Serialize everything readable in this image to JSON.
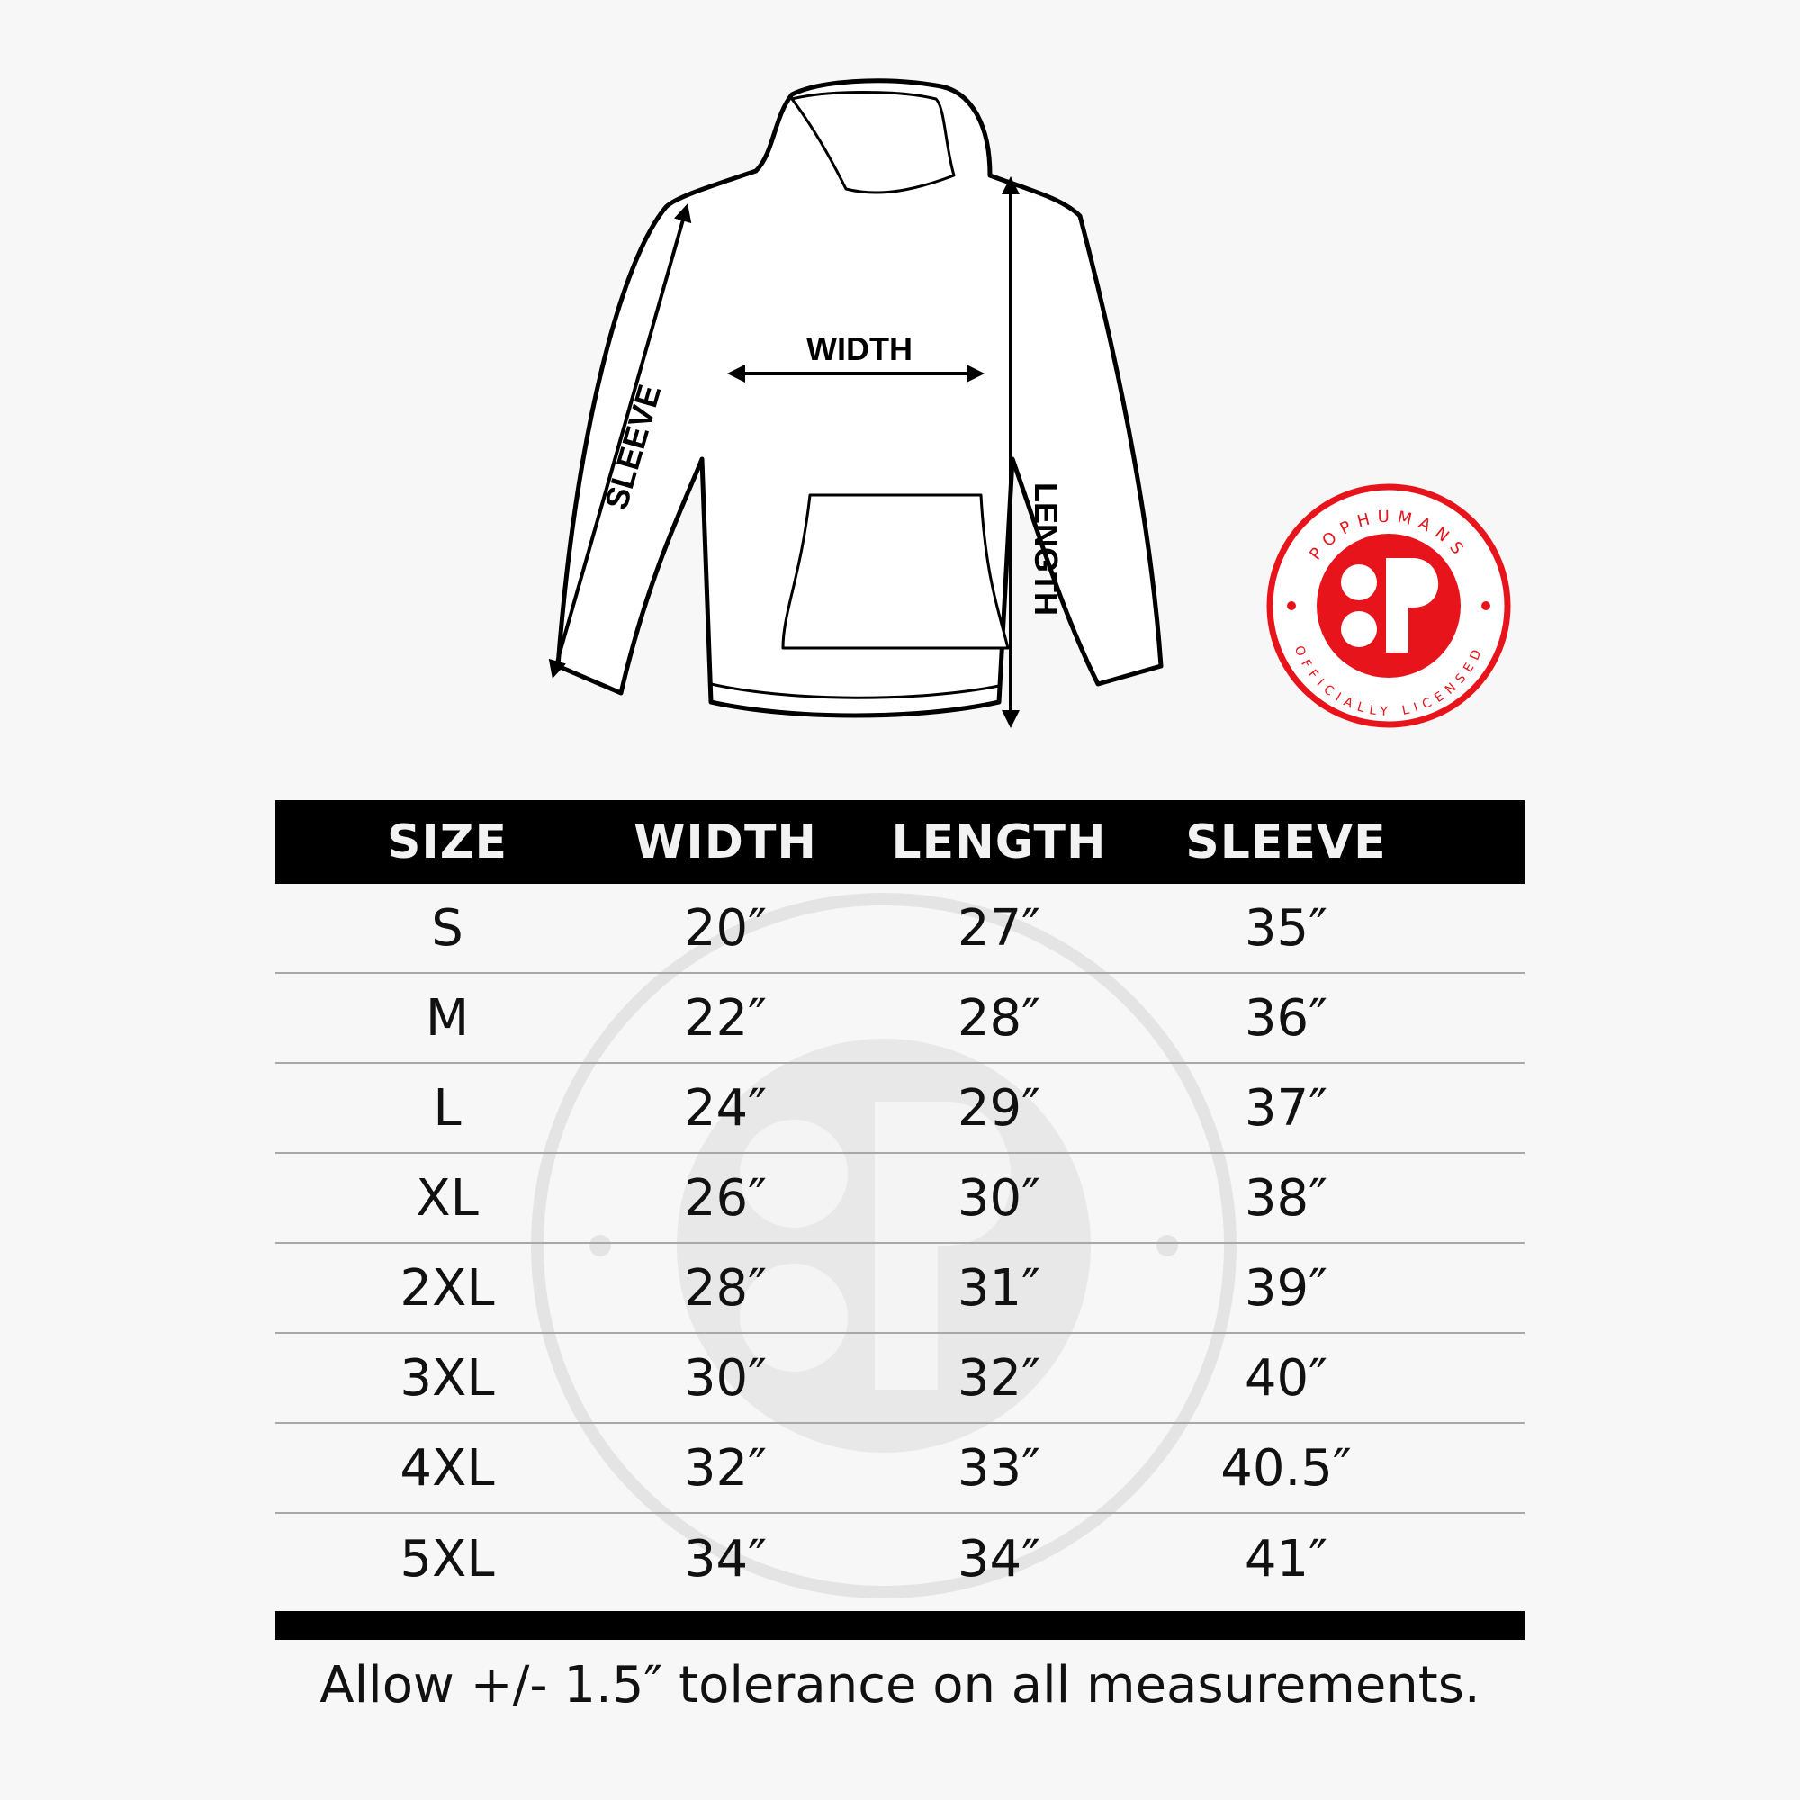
{
  "diagram": {
    "width_label": "WIDTH",
    "length_label": "LENGTH",
    "sleeve_label": "SLEEVE"
  },
  "logo": {
    "top_text": "POPHUMANS",
    "bottom_text": "OFFICIALLY LICENSED",
    "color": "#e8141b"
  },
  "table": {
    "headers": [
      "SIZE",
      "WIDTH",
      "LENGTH",
      "SLEEVE"
    ],
    "rows": [
      [
        "S",
        "20″",
        "27″",
        "35″"
      ],
      [
        "M",
        "22″",
        "28″",
        "36″"
      ],
      [
        "L",
        "24″",
        "29″",
        "37″"
      ],
      [
        "XL",
        "26″",
        "30″",
        "38″"
      ],
      [
        "2XL",
        "28″",
        "31″",
        "39″"
      ],
      [
        "3XL",
        "30″",
        "32″",
        "40″"
      ],
      [
        "4XL",
        "32″",
        "33″",
        "40.5″"
      ],
      [
        "5XL",
        "34″",
        "34″",
        "41″"
      ]
    ]
  },
  "footer": "Allow +/- 1.5″ tolerance on all measurements."
}
